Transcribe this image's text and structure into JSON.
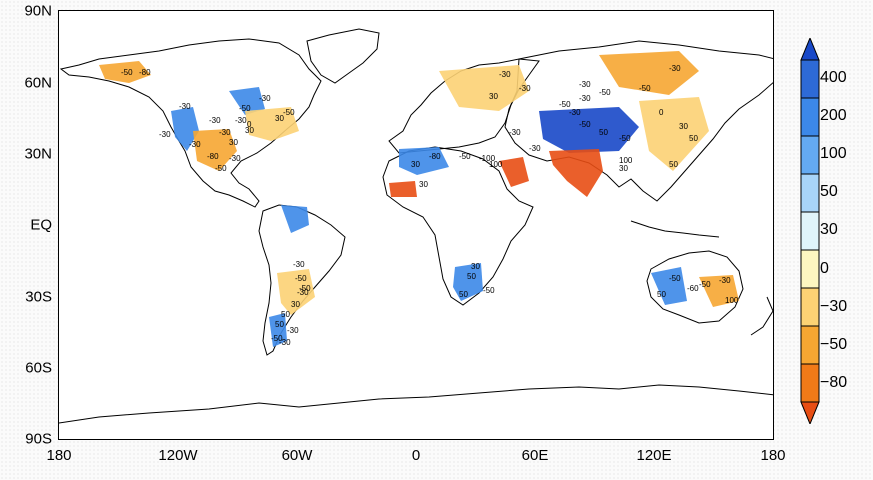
{
  "map": {
    "lat_labels": [
      "90N",
      "60N",
      "30N",
      "EQ",
      "30S",
      "60S",
      "90S"
    ],
    "lon_labels": [
      "180",
      "120W",
      "60W",
      "0",
      "60E",
      "120E",
      "180"
    ]
  },
  "colorbar": {
    "labels": [
      "400",
      "200",
      "100",
      "50",
      "30",
      "0",
      "−30",
      "−50",
      "−80"
    ],
    "colors": [
      "#1848c8",
      "#2e6ad6",
      "#3c88e8",
      "#64aaf2",
      "#a8d4f8",
      "#e0f4fa",
      "#fdf6c0",
      "#fcd274",
      "#f6a632",
      "#f07a18",
      "#e84e14"
    ]
  },
  "contour_labels": {
    "north_america": [
      "-80",
      "-50",
      "-30",
      "-30",
      "-50",
      "-30",
      "-30",
      "-80",
      "-50",
      "30",
      "30",
      "-30",
      "30",
      "0",
      "-50",
      "-30",
      "-30",
      "-30"
    ],
    "south_america": [
      "-30",
      "-50",
      "-50",
      "-30",
      "30",
      "50",
      "-30",
      "-30",
      "50",
      "-50"
    ],
    "africa": [
      "30",
      "-50",
      "-80",
      "30",
      "-100",
      "100",
      "50",
      "50",
      "30",
      "-50"
    ],
    "eurasia": [
      "-30",
      "-30",
      "-50",
      "30",
      "-30",
      "-50",
      "50",
      "-50",
      "100",
      "-30",
      "-50",
      "-30",
      "-50",
      "-30",
      "0",
      "30",
      "50",
      "50",
      "30",
      "-30",
      "-30"
    ],
    "australia": [
      "-50",
      "-60",
      "50",
      "-50",
      "-30",
      "100"
    ]
  }
}
